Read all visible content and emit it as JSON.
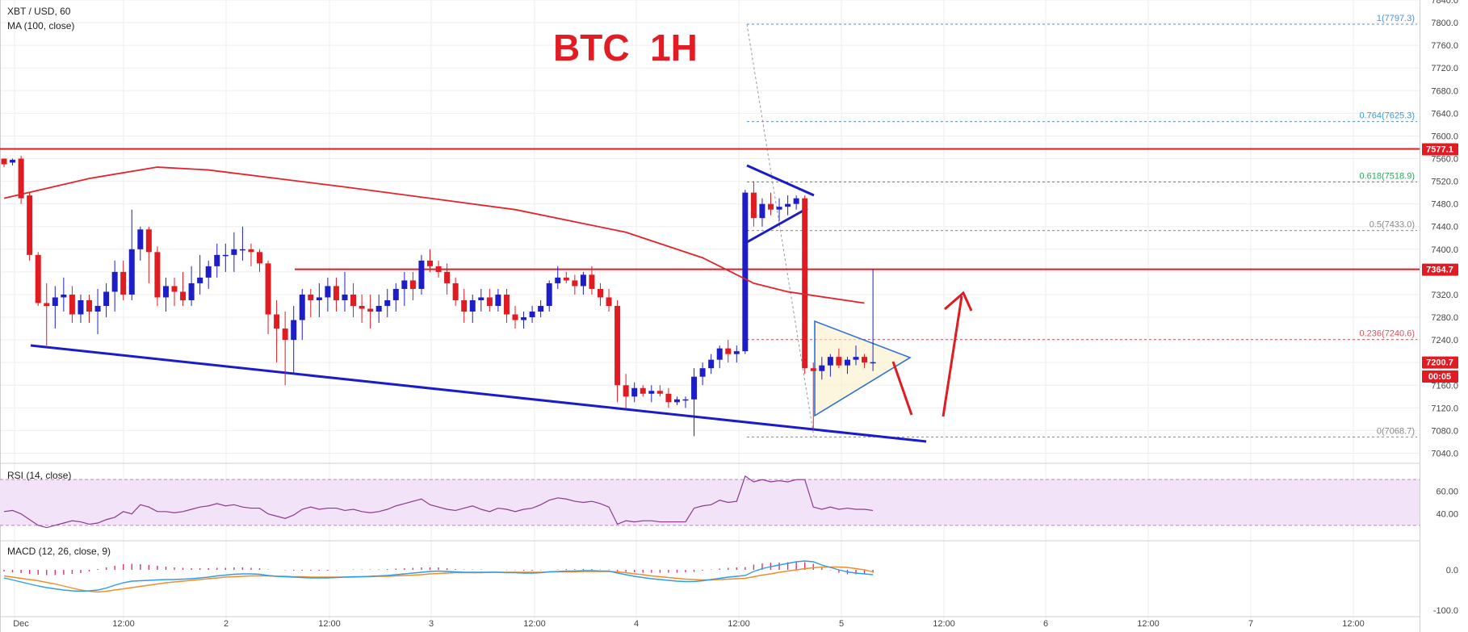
{
  "header": {
    "symbol": "XBT / USD, 60",
    "ma_label": "MA (100, close)",
    "big_title": "BTC  1H",
    "rsi_label": "RSI (14, close)",
    "macd_label": "MACD (12, 26, close, 9)"
  },
  "colors": {
    "up": "#1e1ec8",
    "down": "#e01b22",
    "ma": "#e8202a",
    "pattern": "#1b1bcc",
    "title": "#e31c23",
    "rsi_line": "#8b3a8b",
    "rsi_band": "#f3e3f8",
    "macd_line": "#2d9de8",
    "signal_line": "#f28c28",
    "hist": "#e0307a"
  },
  "chart_data": [
    {
      "type": "candlestick",
      "title": "BTC  1H",
      "ylim": [
        7025,
        7840
      ],
      "y_ticks": [
        "7840.0",
        "7800.0",
        "7760.0",
        "7720.0",
        "7680.0",
        "7640.0",
        "7600.0",
        "7560.0",
        "7520.0",
        "7480.0",
        "7440.0",
        "7400.0",
        "7360.0",
        "7320.0",
        "7280.0",
        "7240.0",
        "7200.0",
        "7160.0",
        "7120.0",
        "7080.0",
        "7040.0"
      ],
      "x_ticks": [
        "Dec",
        "12:00",
        "2",
        "12:00",
        "3",
        "12:00",
        "4",
        "12:00",
        "5",
        "12:00",
        "6",
        "12:00",
        "7",
        "12:00"
      ],
      "price_labels": [
        {
          "text": "7577.1",
          "value": 7577.1
        },
        {
          "text": "7364.7",
          "value": 7364.7
        },
        {
          "text": "7200.7",
          "value": 7200.7
        },
        {
          "text": "00:05",
          "value": 7176
        }
      ],
      "fib_levels": [
        {
          "label": "1(7797.3)",
          "value": 7797.3
        },
        {
          "label": "0.764(7625.3)",
          "value": 7625.3
        },
        {
          "label": "0.618(7518.9)",
          "value": 7518.9
        },
        {
          "label": "0.5(7433.0)",
          "value": 7433.0
        },
        {
          "label": "0.236(7240.6)",
          "value": 7240.6
        },
        {
          "label": "0(7068.7)",
          "value": 7068.7
        }
      ],
      "horizontal_lines": [
        7577.1,
        7364.7
      ],
      "candles": [
        [
          7560,
          7558,
          7545,
          7550
        ],
        [
          7553,
          7560,
          7548,
          7558
        ],
        [
          7560,
          7565,
          7480,
          7490
        ],
        [
          7495,
          7500,
          7380,
          7390
        ],
        [
          7390,
          7395,
          7300,
          7305
        ],
        [
          7305,
          7340,
          7230,
          7300
        ],
        [
          7300,
          7335,
          7260,
          7315
        ],
        [
          7315,
          7350,
          7290,
          7320
        ],
        [
          7320,
          7335,
          7270,
          7285
        ],
        [
          7285,
          7320,
          7270,
          7310
        ],
        [
          7310,
          7320,
          7270,
          7290
        ],
        [
          7290,
          7330,
          7250,
          7300
        ],
        [
          7300,
          7340,
          7280,
          7325
        ],
        [
          7325,
          7380,
          7290,
          7360
        ],
        [
          7360,
          7380,
          7310,
          7320
        ],
        [
          7320,
          7470,
          7310,
          7400
        ],
        [
          7400,
          7440,
          7380,
          7435
        ],
        [
          7435,
          7440,
          7340,
          7395
        ],
        [
          7395,
          7405,
          7300,
          7315
        ],
        [
          7315,
          7350,
          7290,
          7335
        ],
        [
          7335,
          7350,
          7300,
          7325
        ],
        [
          7325,
          7360,
          7300,
          7310
        ],
        [
          7310,
          7370,
          7300,
          7340
        ],
        [
          7340,
          7390,
          7320,
          7350
        ],
        [
          7350,
          7380,
          7330,
          7370
        ],
        [
          7370,
          7410,
          7350,
          7390
        ],
        [
          7390,
          7410,
          7360,
          7390
        ],
        [
          7390,
          7430,
          7360,
          7400
        ],
        [
          7400,
          7440,
          7380,
          7400
        ],
        [
          7400,
          7410,
          7370,
          7395
        ],
        [
          7395,
          7400,
          7360,
          7375
        ],
        [
          7375,
          7380,
          7250,
          7285
        ],
        [
          7285,
          7310,
          7200,
          7260
        ],
        [
          7260,
          7290,
          7160,
          7240
        ],
        [
          7240,
          7300,
          7180,
          7275
        ],
        [
          7275,
          7330,
          7240,
          7320
        ],
        [
          7320,
          7330,
          7280,
          7310
        ],
        [
          7310,
          7340,
          7280,
          7315
        ],
        [
          7315,
          7350,
          7290,
          7335
        ],
        [
          7335,
          7350,
          7290,
          7310
        ],
        [
          7310,
          7360,
          7290,
          7320
        ],
        [
          7320,
          7340,
          7280,
          7300
        ],
        [
          7300,
          7320,
          7270,
          7295
        ],
        [
          7295,
          7320,
          7260,
          7290
        ],
        [
          7290,
          7320,
          7270,
          7300
        ],
        [
          7300,
          7330,
          7280,
          7310
        ],
        [
          7310,
          7340,
          7290,
          7330
        ],
        [
          7330,
          7360,
          7300,
          7345
        ],
        [
          7345,
          7360,
          7310,
          7330
        ],
        [
          7330,
          7390,
          7320,
          7380
        ],
        [
          7380,
          7400,
          7360,
          7370
        ],
        [
          7370,
          7380,
          7350,
          7360
        ],
        [
          7360,
          7375,
          7320,
          7340
        ],
        [
          7340,
          7350,
          7300,
          7310
        ],
        [
          7310,
          7330,
          7270,
          7290
        ],
        [
          7290,
          7320,
          7270,
          7310
        ],
        [
          7310,
          7330,
          7290,
          7315
        ],
        [
          7315,
          7330,
          7290,
          7300
        ],
        [
          7300,
          7330,
          7290,
          7320
        ],
        [
          7320,
          7330,
          7270,
          7285
        ],
        [
          7285,
          7300,
          7260,
          7275
        ],
        [
          7275,
          7290,
          7260,
          7280
        ],
        [
          7280,
          7300,
          7270,
          7290
        ],
        [
          7290,
          7310,
          7280,
          7300
        ],
        [
          7300,
          7345,
          7290,
          7340
        ],
        [
          7340,
          7370,
          7330,
          7350
        ],
        [
          7350,
          7360,
          7340,
          7345
        ],
        [
          7345,
          7355,
          7320,
          7335
        ],
        [
          7335,
          7360,
          7320,
          7355
        ],
        [
          7355,
          7370,
          7320,
          7330
        ],
        [
          7330,
          7340,
          7300,
          7315
        ],
        [
          7315,
          7330,
          7290,
          7300
        ],
        [
          7300,
          7310,
          7130,
          7160
        ],
        [
          7160,
          7180,
          7120,
          7140
        ],
        [
          7140,
          7165,
          7130,
          7155
        ],
        [
          7155,
          7160,
          7140,
          7145
        ],
        [
          7145,
          7160,
          7130,
          7150
        ],
        [
          7150,
          7160,
          7140,
          7145
        ],
        [
          7145,
          7155,
          7120,
          7130
        ],
        [
          7130,
          7140,
          7125,
          7135
        ],
        [
          7135,
          7140,
          7120,
          7135
        ],
        [
          7135,
          7190,
          7070,
          7175
        ],
        [
          7175,
          7200,
          7160,
          7190
        ],
        [
          7190,
          7215,
          7180,
          7205
        ],
        [
          7205,
          7230,
          7190,
          7225
        ],
        [
          7225,
          7240,
          7200,
          7215
        ],
        [
          7215,
          7230,
          7200,
          7220
        ],
        [
          7220,
          7505,
          7215,
          7500
        ],
        [
          7500,
          7520,
          7440,
          7455
        ],
        [
          7455,
          7490,
          7440,
          7480
        ],
        [
          7480,
          7500,
          7460,
          7470
        ],
        [
          7470,
          7490,
          7450,
          7475
        ],
        [
          7475,
          7495,
          7460,
          7480
        ],
        [
          7480,
          7495,
          7470,
          7490
        ],
        [
          7490,
          7495,
          7180,
          7190
        ],
        [
          7190,
          7200,
          7080,
          7185
        ],
        [
          7185,
          7210,
          7170,
          7195
        ],
        [
          7195,
          7215,
          7175,
          7210
        ],
        [
          7210,
          7225,
          7190,
          7195
        ],
        [
          7195,
          7210,
          7180,
          7205
        ],
        [
          7205,
          7230,
          7195,
          7210
        ],
        [
          7210,
          7215,
          7190,
          7200
        ],
        [
          7200,
          7365,
          7185,
          7200.7
        ]
      ],
      "moving_average": [
        {
          "x": 0,
          "value": 7490
        },
        {
          "x": 10,
          "value": 7525
        },
        {
          "x": 18,
          "value": 7545
        },
        {
          "x": 24,
          "value": 7540
        },
        {
          "x": 40,
          "value": 7510
        },
        {
          "x": 60,
          "value": 7470
        },
        {
          "x": 73,
          "value": 7430
        },
        {
          "x": 82,
          "value": 7385
        },
        {
          "x": 88,
          "value": 7340
        },
        {
          "x": 92,
          "value": 7325
        },
        {
          "x": 101,
          "value": 7305
        }
      ]
    },
    {
      "type": "line",
      "title": "RSI (14, close)",
      "ylim": [
        20,
        80
      ],
      "y_ticks": [
        "60.00",
        "40.00"
      ],
      "bands": [
        70,
        30
      ],
      "values": [
        42,
        43,
        40,
        35,
        30,
        28,
        30,
        32,
        34,
        33,
        31,
        32,
        35,
        37,
        42,
        40,
        48,
        46,
        42,
        42,
        41,
        42,
        44,
        46,
        47,
        49,
        47,
        48,
        46,
        45,
        45,
        40,
        38,
        36,
        39,
        44,
        46,
        44,
        45,
        45,
        43,
        44,
        42,
        41,
        42,
        44,
        47,
        49,
        51,
        53,
        48,
        46,
        44,
        43,
        45,
        47,
        44,
        42,
        45,
        44,
        42,
        44,
        45,
        48,
        52,
        54,
        53,
        51,
        50,
        51,
        49,
        46,
        31,
        34,
        33,
        34,
        34,
        33,
        33,
        33,
        33,
        45,
        47,
        48,
        52,
        50,
        51,
        73,
        68,
        70,
        68,
        69,
        68,
        70,
        70,
        46,
        44,
        46,
        44,
        45,
        44,
        44,
        43
      ]
    },
    {
      "type": "line",
      "title": "MACD (12, 26, close, 9)",
      "ylim": [
        -100,
        60
      ],
      "y_ticks": [
        "0.0",
        "-100.0"
      ],
      "series": [
        {
          "name": "",
          "values": [
            -20,
            -25,
            -30,
            -35,
            -40,
            -44,
            -47,
            -50,
            -52,
            -53,
            -52,
            -50,
            -45,
            -38,
            -32,
            -28,
            -27,
            -26,
            -25,
            -24,
            -24,
            -23,
            -22,
            -20,
            -18,
            -15,
            -13,
            -11,
            -10,
            -10,
            -11,
            -14,
            -16,
            -17,
            -18,
            -19,
            -20,
            -20,
            -20,
            -19,
            -18,
            -17,
            -17,
            -16,
            -15,
            -14,
            -12,
            -10,
            -8,
            -6,
            -4,
            -3,
            -4,
            -5,
            -6,
            -6,
            -6,
            -6,
            -6,
            -7,
            -7,
            -8,
            -8,
            -7,
            -5,
            -4,
            -3,
            -3,
            -2,
            -2,
            -3,
            -3,
            -8,
            -12,
            -16,
            -19,
            -22,
            -24,
            -26,
            -28,
            -29,
            -29,
            -27,
            -24,
            -21,
            -18,
            -16,
            -14,
            -4,
            3,
            8,
            12,
            16,
            20,
            22,
            20,
            12,
            6,
            0,
            -5,
            -8,
            -10,
            -12
          ]
        },
        {
          "name": "",
          "values": [
            -15,
            -18,
            -21,
            -24,
            -27,
            -31,
            -35,
            -40,
            -45,
            -50,
            -53,
            -55,
            -53,
            -50,
            -47,
            -44,
            -41,
            -38,
            -35,
            -32,
            -30,
            -28,
            -26,
            -24,
            -22,
            -20,
            -18,
            -17,
            -16,
            -15,
            -15,
            -15,
            -16,
            -16,
            -17,
            -17,
            -18,
            -18,
            -18,
            -18,
            -18,
            -18,
            -17,
            -17,
            -16,
            -16,
            -15,
            -14,
            -13,
            -12,
            -10,
            -9,
            -8,
            -7,
            -7,
            -7,
            -7,
            -6,
            -6,
            -6,
            -6,
            -6,
            -6,
            -6,
            -5,
            -5,
            -5,
            -5,
            -4,
            -4,
            -4,
            -4,
            -5,
            -7,
            -10,
            -12,
            -15,
            -17,
            -19,
            -21,
            -23,
            -24,
            -25,
            -25,
            -24,
            -23,
            -22,
            -21,
            -17,
            -13,
            -10,
            -6,
            -3,
            0,
            3,
            5,
            7,
            7,
            7,
            6,
            3,
            0,
            -5
          ]
        }
      ],
      "histogram": [
        -4,
        -6,
        -8,
        -10,
        -12,
        -13,
        -13,
        -12,
        -10,
        -8,
        -4,
        2,
        6,
        10,
        14,
        15,
        14,
        12,
        10,
        8,
        6,
        5,
        4,
        4,
        4,
        5,
        5,
        6,
        6,
        5,
        4,
        1,
        0,
        -1,
        -2,
        -2,
        -2,
        -2,
        -2,
        -1,
        0,
        1,
        1,
        1,
        1,
        2,
        3,
        4,
        5,
        6,
        6,
        6,
        4,
        2,
        1,
        1,
        1,
        0,
        0,
        -1,
        -1,
        -2,
        -2,
        -1,
        0,
        1,
        2,
        2,
        2,
        2,
        1,
        1,
        -3,
        -5,
        -6,
        -7,
        -7,
        -7,
        -7,
        -7,
        -6,
        -5,
        -2,
        1,
        3,
        5,
        6,
        7,
        13,
        16,
        18,
        18,
        19,
        20,
        19,
        15,
        5,
        -1,
        -7,
        -11,
        -11,
        -10,
        -7
      ]
    }
  ]
}
